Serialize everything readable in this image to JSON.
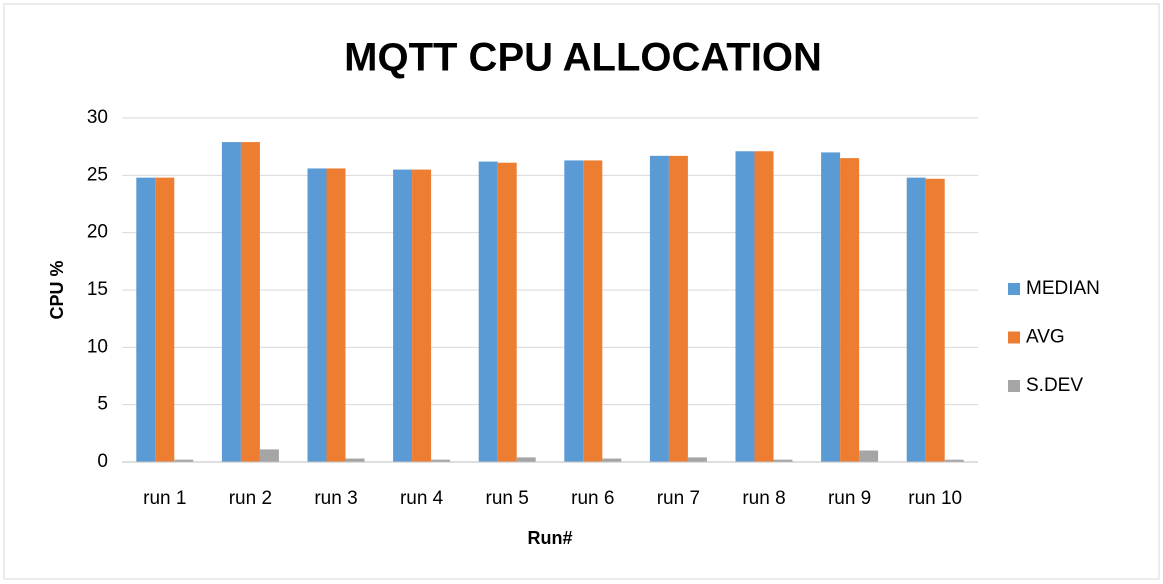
{
  "chart_data": {
    "type": "bar",
    "title": "MQTT CPU ALLOCATION",
    "x_label": "Run#",
    "y_label": "CPU %",
    "categories": [
      "run 1",
      "run 2",
      "run 3",
      "run 4",
      "run 5",
      "run 6",
      "run 7",
      "run 8",
      "run 9",
      "run 10"
    ],
    "series": [
      {
        "name": "MEDIAN",
        "color": "#5b9bd5",
        "values": [
          24.8,
          27.9,
          25.6,
          25.5,
          26.2,
          26.3,
          26.7,
          27.1,
          27.0,
          24.8
        ]
      },
      {
        "name": "AVG",
        "color": "#ed7d31",
        "values": [
          24.8,
          27.9,
          25.6,
          25.5,
          26.1,
          26.3,
          26.7,
          27.1,
          26.5,
          24.7
        ]
      },
      {
        "name": "S.DEV",
        "color": "#a5a5a5",
        "values": [
          0.2,
          1.1,
          0.3,
          0.2,
          0.4,
          0.3,
          0.4,
          0.2,
          1.0,
          0.2
        ]
      }
    ],
    "ylim": [
      0,
      30
    ],
    "yticks": [
      0,
      5,
      10,
      15,
      20,
      25,
      30
    ],
    "grid": true,
    "legend": "right"
  }
}
